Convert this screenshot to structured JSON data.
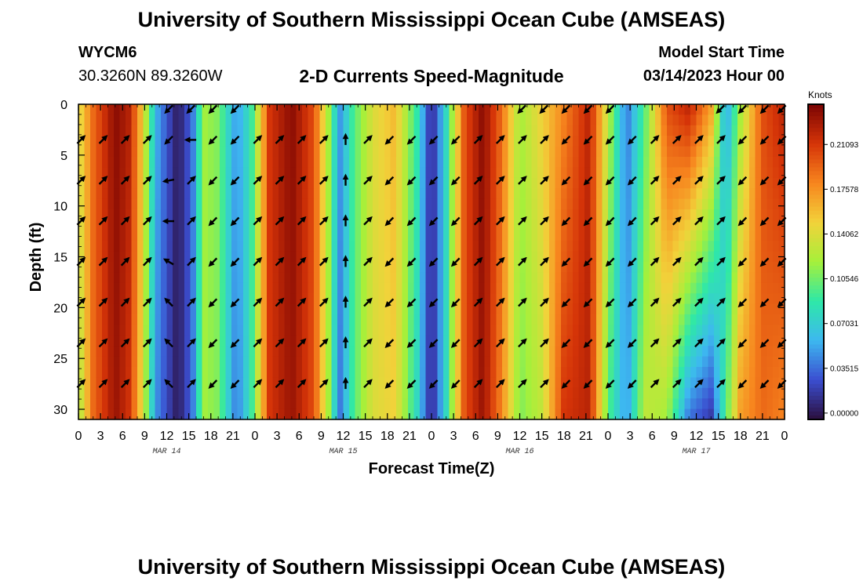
{
  "header": {
    "title": "University of Southern Mississippi Ocean Cube (AMSEAS)",
    "station_id": "WYCM6",
    "coordinates": "30.3260N  89.3260W",
    "subtitle": "2-D Currents Speed-Magnitude",
    "model_start_label": "Model Start Time",
    "model_start_value": "03/14/2023 Hour 00"
  },
  "footer": {
    "title": "University of Southern Mississippi Ocean Cube (AMSEAS)"
  },
  "colors": {
    "scale": [
      "#2b0f3d",
      "#3b4ed0",
      "#3db8f0",
      "#2ee8a8",
      "#a6f03a",
      "#f2d23a",
      "#f7851e",
      "#d53408",
      "#7a0403"
    ]
  },
  "chart_data": {
    "type": "heatmap",
    "title": "2-D Currents Speed-Magnitude",
    "xlabel": "Forecast Time(Z)",
    "ylabel": "Depth (ft)",
    "x_range_hours": [
      0,
      96
    ],
    "ylim": [
      0,
      31
    ],
    "x_ticks": [
      {
        "hour": 0,
        "label": "0"
      },
      {
        "hour": 3,
        "label": "3"
      },
      {
        "hour": 6,
        "label": "6"
      },
      {
        "hour": 9,
        "label": "9"
      },
      {
        "hour": 12,
        "label": "12"
      },
      {
        "hour": 15,
        "label": "15"
      },
      {
        "hour": 18,
        "label": "18"
      },
      {
        "hour": 21,
        "label": "21"
      },
      {
        "hour": 24,
        "label": "0"
      },
      {
        "hour": 27,
        "label": "3"
      },
      {
        "hour": 30,
        "label": "6"
      },
      {
        "hour": 33,
        "label": "9"
      },
      {
        "hour": 36,
        "label": "12"
      },
      {
        "hour": 39,
        "label": "15"
      },
      {
        "hour": 42,
        "label": "18"
      },
      {
        "hour": 45,
        "label": "21"
      },
      {
        "hour": 48,
        "label": "0"
      },
      {
        "hour": 51,
        "label": "3"
      },
      {
        "hour": 54,
        "label": "6"
      },
      {
        "hour": 57,
        "label": "9"
      },
      {
        "hour": 60,
        "label": "12"
      },
      {
        "hour": 63,
        "label": "15"
      },
      {
        "hour": 66,
        "label": "18"
      },
      {
        "hour": 69,
        "label": "21"
      },
      {
        "hour": 72,
        "label": "0"
      },
      {
        "hour": 75,
        "label": "3"
      },
      {
        "hour": 78,
        "label": "6"
      },
      {
        "hour": 81,
        "label": "9"
      },
      {
        "hour": 84,
        "label": "12"
      },
      {
        "hour": 87,
        "label": "15"
      },
      {
        "hour": 90,
        "label": "18"
      },
      {
        "hour": 93,
        "label": "21"
      },
      {
        "hour": 96,
        "label": "0"
      }
    ],
    "y_ticks": [
      {
        "depth": 0,
        "label": "0"
      },
      {
        "depth": 5,
        "label": "5"
      },
      {
        "depth": 10,
        "label": "10"
      },
      {
        "depth": 15,
        "label": "15"
      },
      {
        "depth": 20,
        "label": "20"
      },
      {
        "depth": 25,
        "label": "25"
      },
      {
        "depth": 30,
        "label": "30"
      }
    ],
    "date_labels": [
      {
        "hour": 12,
        "label": "MAR 14"
      },
      {
        "hour": 36,
        "label": "MAR 15"
      },
      {
        "hour": 60,
        "label": "MAR 16"
      },
      {
        "hour": 84,
        "label": "MAR 17"
      }
    ],
    "colorbar": {
      "unit": "Knots",
      "min": 0.0,
      "max": 0.24,
      "ticks": [
        {
          "value": 0.0,
          "label": "0.00000"
        },
        {
          "value": 0.03515,
          "label": "0.03515"
        },
        {
          "value": 0.07031,
          "label": "0.07031"
        },
        {
          "value": 0.10546,
          "label": "0.10546"
        },
        {
          "value": 0.14062,
          "label": "0.14062"
        },
        {
          "value": 0.17578,
          "label": "0.17578"
        },
        {
          "value": 0.21093,
          "label": "0.21093"
        }
      ]
    },
    "speed_profile_surface": [
      {
        "hour": 0,
        "speed": 0.14
      },
      {
        "hour": 2,
        "speed": 0.19
      },
      {
        "hour": 5,
        "speed": 0.235
      },
      {
        "hour": 7,
        "speed": 0.22
      },
      {
        "hour": 8.5,
        "speed": 0.16
      },
      {
        "hour": 10.5,
        "speed": 0.06
      },
      {
        "hour": 13.5,
        "speed": 0.005
      },
      {
        "hour": 15.5,
        "speed": 0.04
      },
      {
        "hour": 17,
        "speed": 0.12
      },
      {
        "hour": 19,
        "speed": 0.11
      },
      {
        "hour": 21.5,
        "speed": 0.05
      },
      {
        "hour": 23.5,
        "speed": 0.09
      },
      {
        "hour": 26,
        "speed": 0.21
      },
      {
        "hour": 29,
        "speed": 0.235
      },
      {
        "hour": 32,
        "speed": 0.2
      },
      {
        "hour": 34,
        "speed": 0.12
      },
      {
        "hour": 35.5,
        "speed": 0.05
      },
      {
        "hour": 37.5,
        "speed": 0.1
      },
      {
        "hour": 40,
        "speed": 0.14
      },
      {
        "hour": 43,
        "speed": 0.16
      },
      {
        "hour": 46,
        "speed": 0.09
      },
      {
        "hour": 48,
        "speed": 0.01
      },
      {
        "hour": 50,
        "speed": 0.08
      },
      {
        "hour": 52.5,
        "speed": 0.2
      },
      {
        "hour": 55,
        "speed": 0.235
      },
      {
        "hour": 57.5,
        "speed": 0.19
      },
      {
        "hour": 60,
        "speed": 0.12
      },
      {
        "hour": 63,
        "speed": 0.15
      },
      {
        "hour": 66,
        "speed": 0.18
      },
      {
        "hour": 69.5,
        "speed": 0.22
      },
      {
        "hour": 72,
        "speed": 0.13
      },
      {
        "hour": 74.5,
        "speed": 0.04
      },
      {
        "hour": 77,
        "speed": 0.1
      },
      {
        "hour": 80,
        "speed": 0.2
      },
      {
        "hour": 83,
        "speed": 0.22
      },
      {
        "hour": 86,
        "speed": 0.17
      },
      {
        "hour": 88,
        "speed": 0.05
      },
      {
        "hour": 90,
        "speed": 0.12
      },
      {
        "hour": 93,
        "speed": 0.2
      },
      {
        "hour": 96,
        "speed": 0.22
      }
    ],
    "speed_profile_bottom": [
      {
        "hour": 0,
        "speed": 0.12
      },
      {
        "hour": 2,
        "speed": 0.19
      },
      {
        "hour": 5,
        "speed": 0.23
      },
      {
        "hour": 7,
        "speed": 0.21
      },
      {
        "hour": 8.5,
        "speed": 0.15
      },
      {
        "hour": 10.5,
        "speed": 0.05
      },
      {
        "hour": 13.5,
        "speed": 0.005
      },
      {
        "hour": 15.5,
        "speed": 0.04
      },
      {
        "hour": 17,
        "speed": 0.12
      },
      {
        "hour": 19,
        "speed": 0.11
      },
      {
        "hour": 21.5,
        "speed": 0.04
      },
      {
        "hour": 23.5,
        "speed": 0.09
      },
      {
        "hour": 26,
        "speed": 0.21
      },
      {
        "hour": 29,
        "speed": 0.23
      },
      {
        "hour": 32,
        "speed": 0.2
      },
      {
        "hour": 34,
        "speed": 0.12
      },
      {
        "hour": 35.5,
        "speed": 0.04
      },
      {
        "hour": 37.5,
        "speed": 0.1
      },
      {
        "hour": 40,
        "speed": 0.14
      },
      {
        "hour": 43,
        "speed": 0.15
      },
      {
        "hour": 46,
        "speed": 0.08
      },
      {
        "hour": 48,
        "speed": 0.01
      },
      {
        "hour": 50,
        "speed": 0.08
      },
      {
        "hour": 52.5,
        "speed": 0.2
      },
      {
        "hour": 55,
        "speed": 0.23
      },
      {
        "hour": 57.5,
        "speed": 0.18
      },
      {
        "hour": 60,
        "speed": 0.11
      },
      {
        "hour": 63,
        "speed": 0.13
      },
      {
        "hour": 66,
        "speed": 0.21
      },
      {
        "hour": 69.5,
        "speed": 0.22
      },
      {
        "hour": 72,
        "speed": 0.1
      },
      {
        "hour": 74.5,
        "speed": 0.05
      },
      {
        "hour": 77,
        "speed": 0.13
      },
      {
        "hour": 80,
        "speed": 0.12
      },
      {
        "hour": 83,
        "speed": 0.04
      },
      {
        "hour": 86,
        "speed": 0.02
      },
      {
        "hour": 88,
        "speed": 0.1
      },
      {
        "hour": 90,
        "speed": 0.17
      },
      {
        "hour": 93,
        "speed": 0.19
      },
      {
        "hour": 96,
        "speed": 0.18
      }
    ],
    "vectors": {
      "depths": [
        0,
        3.5,
        7.5,
        11.5,
        15.5,
        19.5,
        23.5,
        27.5
      ],
      "hours": [
        0,
        3,
        6,
        9,
        12,
        15,
        18,
        21,
        24,
        27,
        30,
        33,
        36,
        39,
        42,
        45,
        48,
        51,
        54,
        57,
        60,
        63,
        66,
        69,
        72,
        75,
        78,
        81,
        84,
        87,
        90,
        93,
        96
      ],
      "directions_deg": [
        [
          null,
          null,
          null,
          null,
          225,
          225,
          225,
          225,
          null,
          null,
          null,
          null,
          null,
          null,
          null,
          null,
          null,
          null,
          null,
          null,
          225,
          225,
          225,
          225,
          225,
          null,
          null,
          null,
          null,
          225,
          225,
          225,
          225
        ],
        [
          45,
          45,
          45,
          45,
          225,
          270,
          225,
          225,
          45,
          45,
          45,
          45,
          0,
          45,
          225,
          225,
          225,
          225,
          45,
          45,
          45,
          45,
          225,
          225,
          225,
          225,
          45,
          45,
          45,
          45,
          225,
          225,
          225
        ],
        [
          45,
          45,
          45,
          45,
          260,
          45,
          225,
          225,
          45,
          45,
          45,
          45,
          0,
          45,
          225,
          225,
          225,
          225,
          45,
          45,
          45,
          45,
          225,
          225,
          225,
          225,
          45,
          45,
          45,
          45,
          225,
          225,
          225
        ],
        [
          45,
          45,
          45,
          45,
          270,
          45,
          225,
          225,
          45,
          45,
          45,
          45,
          0,
          45,
          225,
          225,
          225,
          225,
          45,
          45,
          45,
          45,
          225,
          225,
          225,
          225,
          45,
          45,
          45,
          45,
          225,
          225,
          225
        ],
        [
          45,
          45,
          45,
          45,
          300,
          45,
          225,
          225,
          45,
          45,
          45,
          45,
          0,
          45,
          225,
          225,
          225,
          225,
          45,
          45,
          45,
          45,
          225,
          225,
          225,
          225,
          45,
          45,
          45,
          45,
          225,
          225,
          225
        ],
        [
          45,
          45,
          45,
          45,
          315,
          45,
          225,
          225,
          45,
          45,
          45,
          45,
          0,
          45,
          225,
          225,
          225,
          225,
          45,
          45,
          45,
          45,
          225,
          225,
          225,
          225,
          45,
          45,
          45,
          45,
          225,
          225,
          225
        ],
        [
          45,
          45,
          45,
          45,
          315,
          45,
          225,
          225,
          45,
          45,
          45,
          45,
          0,
          45,
          225,
          225,
          225,
          225,
          45,
          45,
          45,
          45,
          225,
          225,
          225,
          225,
          45,
          45,
          45,
          45,
          225,
          225,
          225
        ],
        [
          45,
          45,
          45,
          45,
          315,
          45,
          225,
          225,
          45,
          45,
          45,
          45,
          0,
          45,
          225,
          225,
          225,
          225,
          45,
          45,
          45,
          45,
          225,
          225,
          225,
          225,
          45,
          45,
          45,
          45,
          225,
          225,
          225
        ]
      ]
    }
  }
}
